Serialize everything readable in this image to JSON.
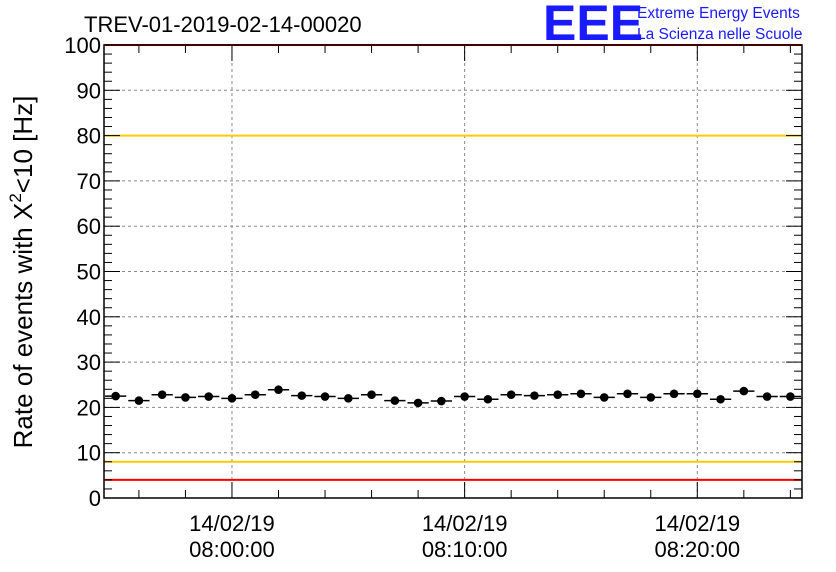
{
  "colors": {
    "marker": "#000000",
    "upper_threshold": "#ffcc00",
    "lower_threshold": "#ffcc00",
    "limit_lines": "#ff0000",
    "logo": "#1a1aff",
    "grid": "#888888"
  },
  "logo": {
    "mark": "EEE",
    "line1": "Extreme Energy Events",
    "line2": "La Scienza nelle Scuole"
  },
  "chart_data": {
    "type": "scatter",
    "title": "TREV-01-2019-02-14-00020",
    "ylabel_main": "Rate of events with X",
    "ylabel_sup": "2",
    "ylabel_tail": "<10 [Hz]",
    "ylim": [
      0,
      100
    ],
    "yticks": [
      "0",
      "10",
      "20",
      "30",
      "40",
      "50",
      "60",
      "70",
      "80",
      "90",
      "100"
    ],
    "xlim_minutes": [
      -5.5,
      24.5
    ],
    "xticks": [
      {
        "minute": 0,
        "date": "14/02/19",
        "time": "08:00:00"
      },
      {
        "minute": 10,
        "date": "14/02/19",
        "time": "08:10:00"
      },
      {
        "minute": 20,
        "date": "14/02/19",
        "time": "08:20:00"
      }
    ],
    "grid": true,
    "reference_lines": [
      {
        "y": 100,
        "kind": "limit"
      },
      {
        "y": 80,
        "kind": "threshold"
      },
      {
        "y": 8,
        "kind": "threshold"
      },
      {
        "y": 4,
        "kind": "limit"
      }
    ],
    "points": [
      {
        "x": -5.0,
        "y": 22.5
      },
      {
        "x": -4.0,
        "y": 21.5
      },
      {
        "x": -3.0,
        "y": 22.8
      },
      {
        "x": -2.0,
        "y": 22.2
      },
      {
        "x": -1.0,
        "y": 22.4
      },
      {
        "x": 0.0,
        "y": 22.0
      },
      {
        "x": 1.0,
        "y": 22.8
      },
      {
        "x": 2.0,
        "y": 23.9
      },
      {
        "x": 3.0,
        "y": 22.6
      },
      {
        "x": 4.0,
        "y": 22.4
      },
      {
        "x": 5.0,
        "y": 22.0
      },
      {
        "x": 6.0,
        "y": 22.8
      },
      {
        "x": 7.0,
        "y": 21.5
      },
      {
        "x": 8.0,
        "y": 21.0
      },
      {
        "x": 9.0,
        "y": 21.4
      },
      {
        "x": 10.0,
        "y": 22.4
      },
      {
        "x": 11.0,
        "y": 21.8
      },
      {
        "x": 12.0,
        "y": 22.8
      },
      {
        "x": 13.0,
        "y": 22.6
      },
      {
        "x": 14.0,
        "y": 22.8
      },
      {
        "x": 15.0,
        "y": 23.0
      },
      {
        "x": 16.0,
        "y": 22.2
      },
      {
        "x": 17.0,
        "y": 23.0
      },
      {
        "x": 18.0,
        "y": 22.2
      },
      {
        "x": 19.0,
        "y": 23.0
      },
      {
        "x": 20.0,
        "y": 23.0
      },
      {
        "x": 21.0,
        "y": 21.8
      },
      {
        "x": 22.0,
        "y": 23.6
      },
      {
        "x": 23.0,
        "y": 22.4
      },
      {
        "x": 24.0,
        "y": 22.4
      }
    ]
  }
}
